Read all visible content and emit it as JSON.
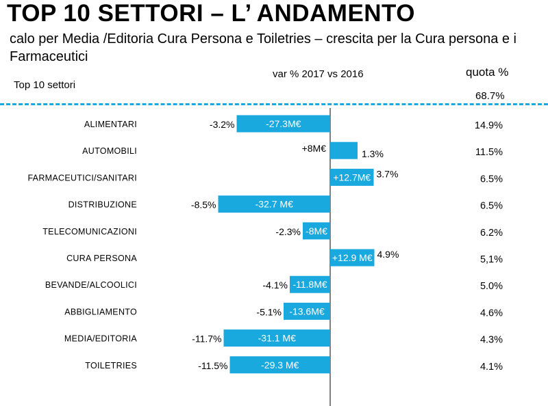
{
  "header": {
    "title": "TOP 10 SETTORI – L’ ANDAMENTO",
    "subtitle": "calo per Media /Editoria Cura Persona e Toiletries – crescita per la Cura persona e i Farmaceutici",
    "left_label": "Top 10 settori",
    "var_label": "var %  2017 vs 2016",
    "quota_label": "quota %",
    "quota_total": "68.7%"
  },
  "colors": {
    "bar": "#1aa9de",
    "divider": "#1aa9de",
    "axis": "#000000",
    "bar_text": "#ffffff"
  },
  "chart_data": {
    "type": "bar",
    "orientation": "horizontal",
    "title": "TOP 10 SETTORI – L’ ANDAMENTO",
    "xlabel": "var %  2017 vs 2016",
    "ylabel": "Top 10 settori",
    "unit": "M€",
    "categories": [
      "ALIMENTARI",
      "AUTOMOBILI",
      "FARMACEUTICI/SANITARI",
      "DISTRIBUZIONE",
      "TELECOMUNICAZIONI",
      "CURA PERSONA",
      "BEVANDE/ALCOOLICI",
      "ABBIGLIAMENTO",
      "MEDIA/EDITORIA",
      "TOILETRIES"
    ],
    "values": [
      -27.3,
      8,
      12.7,
      -32.7,
      -8,
      12.9,
      -11.8,
      -13.6,
      -31.1,
      -29.3
    ],
    "value_labels": [
      "-27.3M€",
      "+8M€",
      "+12.7M€",
      "-32.7 M€",
      "-8M€",
      "+12.9 M€",
      "-11.8M€",
      "-13.6M€",
      "-31.1 M€",
      "-29.3 M€"
    ],
    "pct_labels": [
      "-3.2%",
      "1.3%",
      "3.7%",
      "-8.5%",
      "-2.3%",
      "4.9%",
      "-4.1%",
      "-5.1%",
      "-11.7%",
      "-11.5%"
    ],
    "quota_labels": [
      "14.9%",
      "11.5%",
      "6.5%",
      "6.5%",
      "6.2%",
      "5,1%",
      "5.0%",
      "4.6%",
      "4.3%",
      "4.1%"
    ],
    "label_inside": [
      true,
      false,
      true,
      true,
      true,
      true,
      true,
      true,
      true,
      true
    ]
  }
}
